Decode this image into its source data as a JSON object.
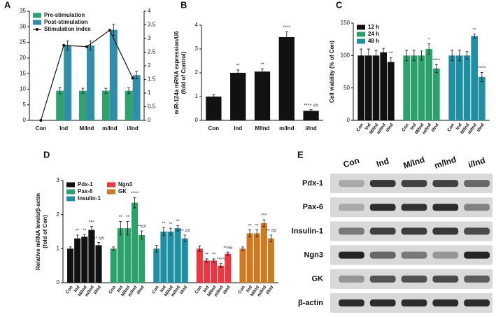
{
  "chart_data": [
    {
      "type": "bar_line",
      "panel": "A",
      "categories": [
        "Con",
        "Ind",
        "M/Ind",
        "m/Ind",
        "i/Ind"
      ],
      "series": [
        {
          "name": "Pre-stimulation",
          "color": "#2fa36b",
          "values": [
            0,
            9.5,
            9.5,
            9.5,
            9.5
          ],
          "errors": [
            0,
            1,
            0.8,
            0.8,
            0.9
          ]
        },
        {
          "name": "Post-stimulation",
          "color": "#2f8fab",
          "values": [
            0,
            24,
            24,
            29,
            14.5
          ],
          "errors": [
            0,
            1.5,
            1.5,
            1.8,
            1.2
          ]
        },
        {
          "name": "Stimulation index",
          "color": "#111111",
          "axis": "y2",
          "values": [
            0,
            2.75,
            2.7,
            3.3,
            1.55
          ]
        }
      ],
      "ylim": [
        0,
        35
      ],
      "yticks": [
        0,
        5,
        10,
        15,
        20,
        25,
        30,
        35
      ],
      "y2lim": [
        0,
        4
      ],
      "y2ticks": [
        0,
        0.5,
        1,
        1.5,
        2,
        2.5,
        3,
        3.5,
        4
      ],
      "legend": "upper left"
    },
    {
      "type": "bar",
      "panel": "B",
      "ylabel": [
        "miR-124a mRNA expression/U6",
        "(fold of Control)"
      ],
      "categories": [
        "Con",
        "Ind",
        "M/Ind",
        "m/Ind",
        "i/Ind"
      ],
      "values": [
        1.0,
        2.0,
        2.05,
        3.5,
        0.4
      ],
      "errors": [
        0.08,
        0.12,
        0.12,
        0.22,
        0.05
      ],
      "annotations": [
        null,
        "**",
        "**",
        "**^^",
        "**^^ ##"
      ],
      "color": "#111111",
      "ylim": [
        0,
        4
      ],
      "yticks": [
        0,
        1,
        2,
        3,
        4
      ]
    },
    {
      "type": "bar",
      "panel": "C",
      "ylabel": [
        "Cell viability (% of Con)"
      ],
      "categories": [
        "Con",
        "Ind",
        "M/Ind",
        "m/Ind",
        "i/Ind"
      ],
      "series": [
        {
          "name": "12 h",
          "color": "#111111",
          "values": [
            100,
            100,
            100,
            105,
            90
          ],
          "errors": [
            10,
            10,
            8,
            6,
            7
          ],
          "annotations": [
            null,
            null,
            null,
            null,
            "^^"
          ]
        },
        {
          "name": "24 h",
          "color": "#2aa36b",
          "values": [
            100,
            100,
            100,
            110,
            80
          ],
          "errors": [
            8,
            8,
            7,
            8,
            6
          ],
          "annotations": [
            null,
            null,
            null,
            "*",
            "**^^"
          ]
        },
        {
          "name": "48 h",
          "color": "#1f8fa2",
          "values": [
            100,
            100,
            100,
            130,
            67
          ],
          "errors": [
            8,
            8,
            6,
            3,
            7
          ],
          "annotations": [
            null,
            null,
            null,
            "**",
            "**^^"
          ]
        }
      ],
      "ylim": [
        0,
        150
      ],
      "yticks": [
        0,
        50,
        100,
        150
      ],
      "legend": "upper left"
    },
    {
      "type": "bar",
      "panel": "D",
      "ylabel": [
        "Relative mRNA levels/β-actin",
        "(fold of Con)"
      ],
      "categories": [
        "Con",
        "Ind",
        "M/Ind",
        "m/Ind",
        "i/Ind"
      ],
      "series": [
        {
          "name": "Pdx-1",
          "color": "#111111",
          "values": [
            1.0,
            1.3,
            1.35,
            1.55,
            1.1
          ],
          "errors": [
            0.05,
            0.1,
            0.06,
            0.1,
            0.08
          ],
          "annotations": [
            null,
            "**",
            "**",
            "**^",
            "^^ ##"
          ]
        },
        {
          "name": "Pax-6",
          "color": "#2aa36b",
          "values": [
            1.0,
            1.6,
            1.6,
            2.35,
            1.4
          ],
          "errors": [
            0.05,
            0.2,
            0.2,
            0.15,
            0.12
          ],
          "annotations": [
            null,
            "**",
            "**",
            "**^^",
            "**##"
          ]
        },
        {
          "name": "Insulin-1",
          "color": "#1f8fa2",
          "values": [
            1.0,
            1.5,
            1.5,
            1.6,
            1.3
          ],
          "errors": [
            0.1,
            0.12,
            0.1,
            0.08,
            0.1
          ],
          "annotations": [
            null,
            "**",
            "**",
            "**",
            "^^ ##"
          ]
        },
        {
          "name": "Ngn3",
          "color": "#f0353f",
          "values": [
            1.0,
            0.65,
            0.65,
            0.5,
            0.85
          ],
          "errors": [
            0.08,
            0.05,
            0.05,
            0.06,
            0.05
          ],
          "annotations": [
            null,
            "**",
            "**",
            "**^^",
            "*^##"
          ]
        },
        {
          "name": "GK",
          "color": "#cf7a1e",
          "values": [
            1.0,
            1.45,
            1.45,
            1.75,
            1.3
          ],
          "errors": [
            0.05,
            0.1,
            0.1,
            0.1,
            0.1
          ],
          "annotations": [
            null,
            "**",
            "**",
            "**^",
            "^^ ##"
          ]
        }
      ],
      "ylim": [
        0,
        3
      ],
      "yticks": [
        0,
        1,
        2,
        3
      ],
      "legend": "upper left"
    },
    {
      "type": "blot",
      "panel": "E",
      "lanes": [
        "Con",
        "Ind",
        "M/Ind",
        "m/Ind",
        "i/Ind"
      ],
      "rows": [
        "Pdx-1",
        "Pax-6",
        "Insulin-1",
        "Ngn3",
        "GK",
        "β-actin"
      ]
    }
  ]
}
